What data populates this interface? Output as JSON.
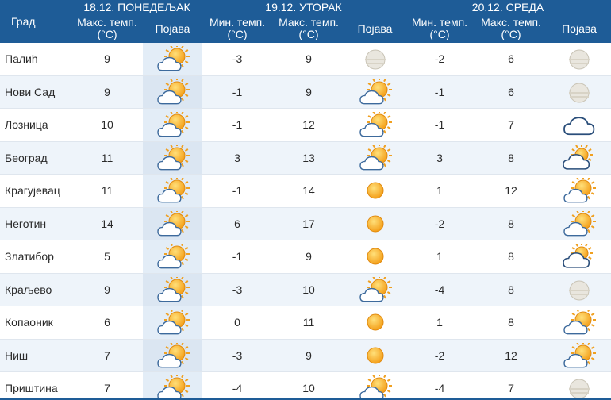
{
  "header": {
    "city_label": "Град",
    "days": [
      {
        "date": "18.12. ПОНЕДЕЉАК",
        "max_label": "Макс. темп. (°C)",
        "icon_label": "Појава"
      },
      {
        "date": "19.12. УТОРАК",
        "min_label": "Мин. темп. (°C)",
        "max_label": "Макс. темп. (°C)",
        "icon_label": "Појава"
      },
      {
        "date": "20.12. СРЕДА",
        "min_label": "Мин. темп. (°C)",
        "max_label": "Макс. темп. (°C)",
        "icon_label": "Појава"
      }
    ]
  },
  "rows": [
    {
      "city": "Палић",
      "d1_max": "9",
      "d1_icon": "partly-cloudy-icon",
      "d2_min": "-3",
      "d2_max": "9",
      "d2_icon": "fog-icon",
      "d3_min": "-2",
      "d3_max": "6",
      "d3_icon": "fog-icon"
    },
    {
      "city": "Нови Сад",
      "d1_max": "9",
      "d1_icon": "partly-cloudy-icon",
      "d2_min": "-1",
      "d2_max": "9",
      "d2_icon": "partly-cloudy-icon",
      "d3_min": "-1",
      "d3_max": "6",
      "d3_icon": "fog-icon"
    },
    {
      "city": "Лозница",
      "d1_max": "10",
      "d1_icon": "partly-cloudy-icon",
      "d2_min": "-1",
      "d2_max": "12",
      "d2_icon": "partly-cloudy-icon",
      "d3_min": "-1",
      "d3_max": "7",
      "d3_icon": "cloud-icon"
    },
    {
      "city": "Београд",
      "d1_max": "11",
      "d1_icon": "partly-cloudy-icon",
      "d2_min": "3",
      "d2_max": "13",
      "d2_icon": "partly-cloudy-icon",
      "d3_min": "3",
      "d3_max": "8",
      "d3_icon": "cloudy-sun-icon"
    },
    {
      "city": "Крагујевац",
      "d1_max": "11",
      "d1_icon": "partly-cloudy-icon",
      "d2_min": "-1",
      "d2_max": "14",
      "d2_icon": "sun-icon",
      "d3_min": "1",
      "d3_max": "12",
      "d3_icon": "partly-cloudy-icon"
    },
    {
      "city": "Неготин",
      "d1_max": "14",
      "d1_icon": "partly-cloudy-icon",
      "d2_min": "6",
      "d2_max": "17",
      "d2_icon": "sun-icon",
      "d3_min": "-2",
      "d3_max": "8",
      "d3_icon": "partly-cloudy-icon"
    },
    {
      "city": "Златибор",
      "d1_max": "5",
      "d1_icon": "partly-cloudy-icon",
      "d2_min": "-1",
      "d2_max": "9",
      "d2_icon": "sun-icon",
      "d3_min": "1",
      "d3_max": "8",
      "d3_icon": "cloudy-sun-icon"
    },
    {
      "city": "Краљево",
      "d1_max": "9",
      "d1_icon": "partly-cloudy-icon",
      "d2_min": "-3",
      "d2_max": "10",
      "d2_icon": "partly-cloudy-icon",
      "d3_min": "-4",
      "d3_max": "8",
      "d3_icon": "fog-icon"
    },
    {
      "city": "Копаоник",
      "d1_max": "6",
      "d1_icon": "partly-cloudy-icon",
      "d2_min": "0",
      "d2_max": "11",
      "d2_icon": "sun-icon",
      "d3_min": "1",
      "d3_max": "8",
      "d3_icon": "partly-cloudy-icon"
    },
    {
      "city": "Ниш",
      "d1_max": "7",
      "d1_icon": "partly-cloudy-icon",
      "d2_min": "-3",
      "d2_max": "9",
      "d2_icon": "sun-icon",
      "d3_min": "-2",
      "d3_max": "12",
      "d3_icon": "partly-cloudy-icon"
    },
    {
      "city": "Приштина",
      "d1_max": "7",
      "d1_icon": "partly-cloudy-icon",
      "d2_min": "-4",
      "d2_max": "10",
      "d2_icon": "partly-cloudy-icon",
      "d3_min": "-4",
      "d3_max": "7",
      "d3_icon": "fog-icon"
    }
  ],
  "colors": {
    "header_bg": "#1e5c97",
    "sun": "#f5a623",
    "cloud": "#ffffff"
  }
}
